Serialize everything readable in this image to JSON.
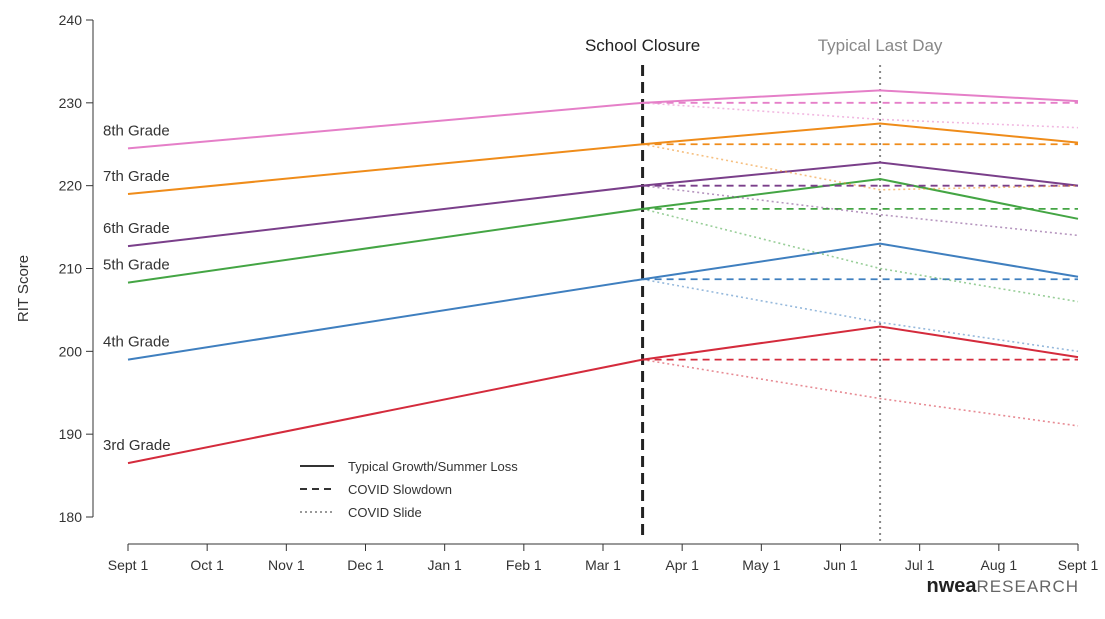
{
  "chart_data": {
    "type": "line",
    "ylabel": "RIT Score",
    "ylim": [
      180,
      240
    ],
    "yticks": [
      180,
      190,
      200,
      210,
      220,
      230,
      240
    ],
    "x_tick_labels": [
      "Sept 1",
      "Oct 1",
      "Nov 1",
      "Dec 1",
      "Jan 1",
      "Feb 1",
      "Mar 1",
      "Apr 1",
      "May 1",
      "Jun 1",
      "Jul 1",
      "Aug 1",
      "Sept 1"
    ],
    "grid": false,
    "legend_position": "bottom-left",
    "legend": [
      {
        "label": "Typical Growth/Summer Loss",
        "style": "solid"
      },
      {
        "label": "COVID Slowdown",
        "style": "dashed"
      },
      {
        "label": "COVID Slide",
        "style": "dotted"
      }
    ],
    "annotations": [
      {
        "label": "School Closure",
        "x": 6.5,
        "style": "dashed",
        "color": "#222222"
      },
      {
        "label": "Typical Last Day",
        "x": 9.5,
        "style": "dotted",
        "color": "#888888"
      }
    ],
    "x_points": [
      0,
      6.5,
      9.5,
      12
    ],
    "series": [
      {
        "name": "3rd Grade",
        "color": "#d42b3c",
        "typical": [
          186.5,
          199,
          203,
          199.3
        ],
        "slowdown": [
          199,
          199,
          199
        ],
        "slide": [
          199,
          194.3,
          191
        ]
      },
      {
        "name": "4th Grade",
        "color": "#3f7fbf",
        "typical": [
          199,
          208.7,
          213,
          209
        ],
        "slowdown": [
          208.7,
          208.7,
          208.7
        ],
        "slide": [
          208.7,
          203.5,
          200
        ]
      },
      {
        "name": "5th Grade",
        "color": "#44a544",
        "typical": [
          208.3,
          217.2,
          220.8,
          216
        ],
        "slowdown": [
          217.2,
          217.2,
          217.2
        ],
        "slide": [
          217.2,
          210,
          206
        ]
      },
      {
        "name": "6th Grade",
        "color": "#7a3f8a",
        "typical": [
          212.7,
          220,
          222.8,
          220
        ],
        "slowdown": [
          220,
          220,
          220
        ],
        "slide": [
          220,
          216.5,
          214
        ]
      },
      {
        "name": "7th Grade",
        "color": "#ef8c1a",
        "typical": [
          219,
          225,
          227.5,
          225.2
        ],
        "slowdown": [
          225,
          225,
          225
        ],
        "slide": [
          225,
          219.5,
          220
        ]
      },
      {
        "name": "8th Grade",
        "color": "#e57fc8",
        "typical": [
          224.5,
          230,
          231.5,
          230.2
        ],
        "slowdown": [
          230,
          230,
          230
        ],
        "slide": [
          230,
          228,
          227
        ]
      }
    ]
  },
  "logo": {
    "bold": "nwea",
    "light": "RESEARCH"
  }
}
